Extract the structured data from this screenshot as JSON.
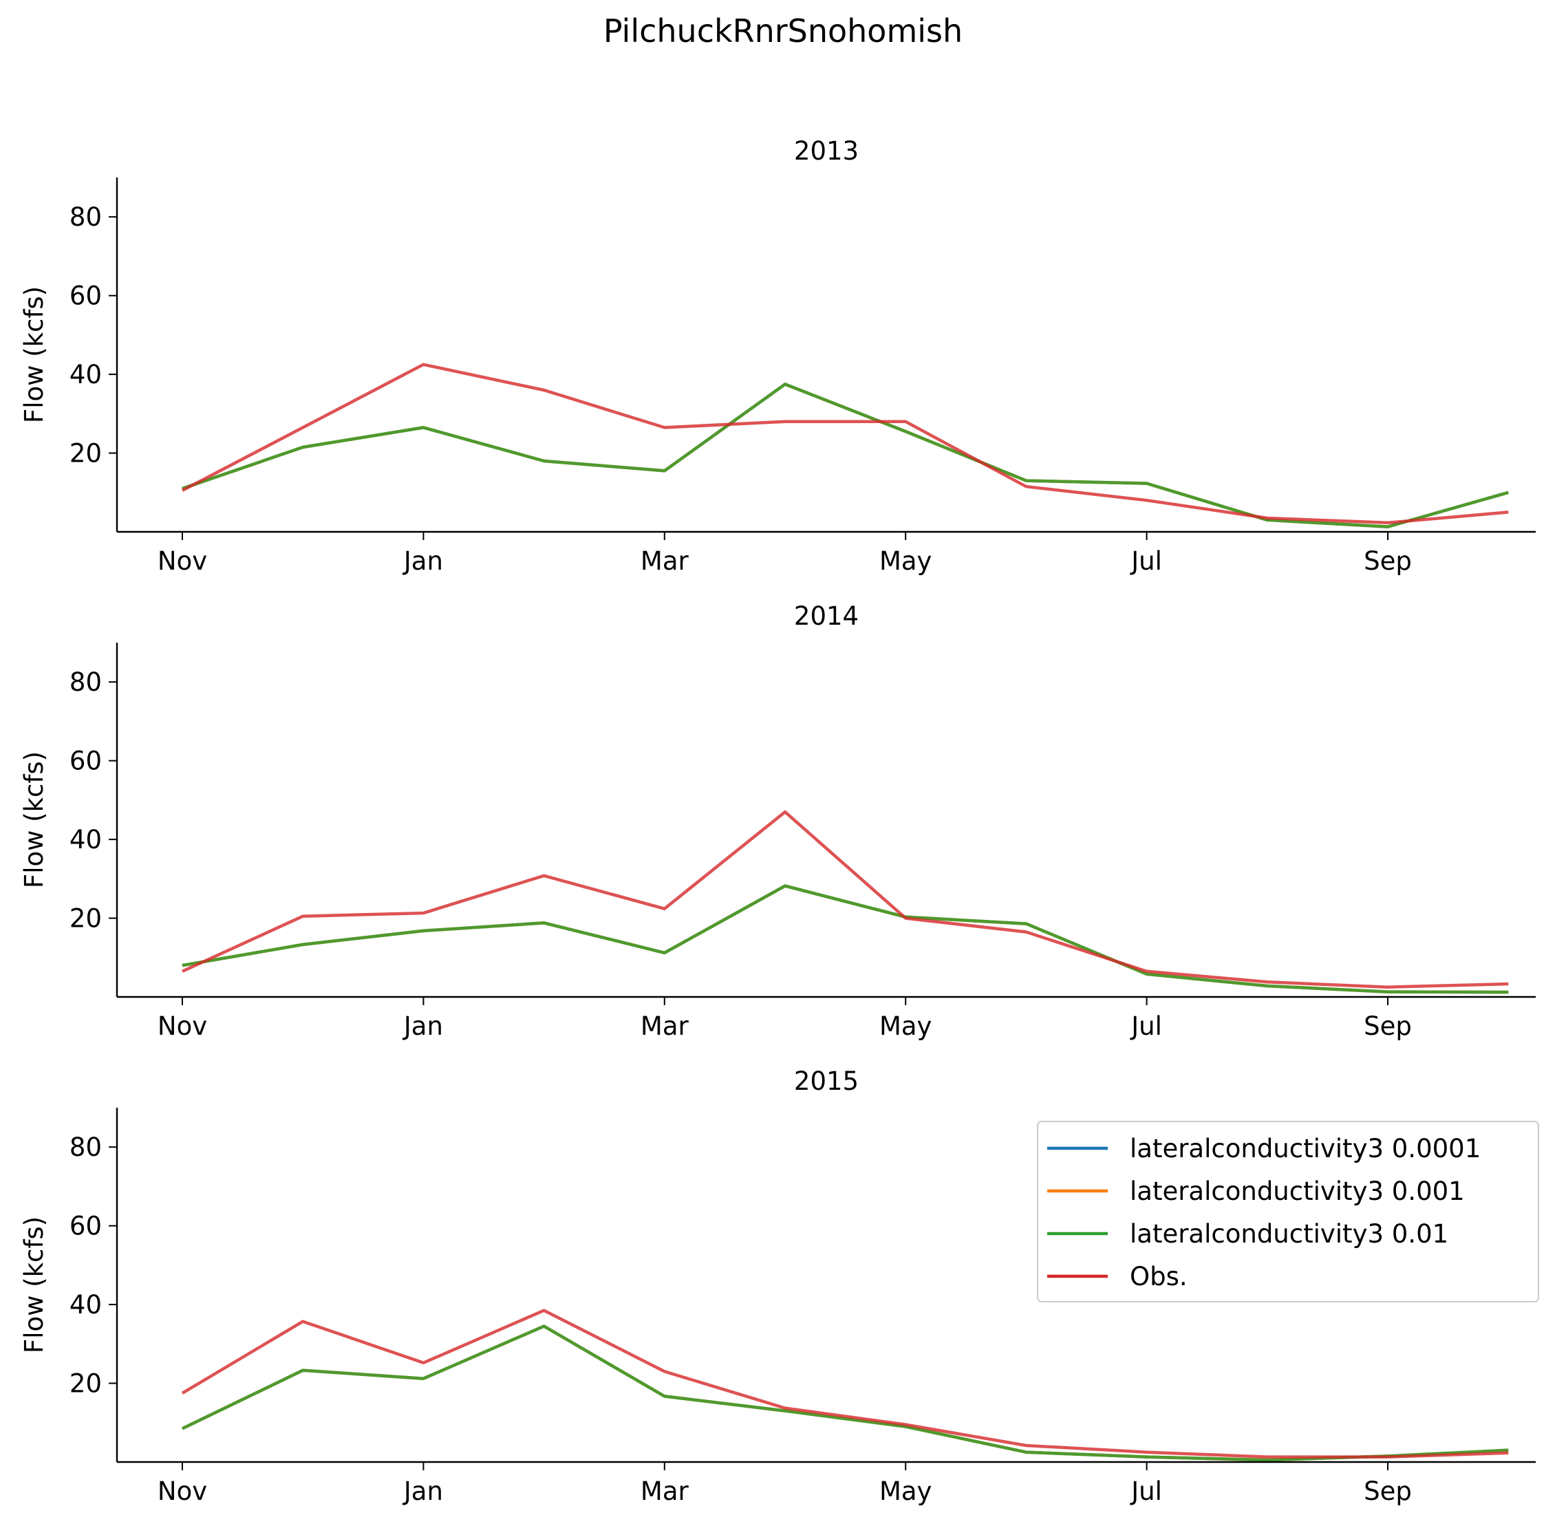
{
  "figure": {
    "title": "PilchuckRnrSnohomish"
  },
  "colors": {
    "lateralconductivity3 0.0001": "#1f77b4",
    "lateralconductivity3 0.001": "#ff7f0e",
    "lateralconductivity3 0.01": "#2ca02c",
    "Obs.": "#d62728"
  },
  "chart_data": [
    {
      "type": "line",
      "title": "2013",
      "xlabel": "",
      "ylabel": "Flow (kcfs)",
      "x_tick_labels": [
        "Nov",
        "Jan",
        "Mar",
        "May",
        "Jul",
        "Sep"
      ],
      "y_ticks": [
        20,
        40,
        60,
        80
      ],
      "ylim": [
        0,
        90
      ],
      "x": [
        "Nov",
        "Dec",
        "Jan",
        "Feb",
        "Mar",
        "Apr",
        "May",
        "Jun",
        "Jul",
        "Aug",
        "Sep",
        "Oct"
      ],
      "series": [
        {
          "name": "lateralconductivity3 0.0001",
          "values": [
            11.0,
            21.5,
            26.5,
            18.0,
            15.5,
            37.5,
            25.5,
            13.0,
            12.3,
            3.0,
            1.3,
            10.0
          ]
        },
        {
          "name": "lateralconductivity3 0.001",
          "values": [
            11.0,
            21.5,
            26.5,
            18.0,
            15.5,
            37.5,
            25.5,
            13.0,
            12.3,
            3.0,
            1.3,
            10.0
          ]
        },
        {
          "name": "lateralconductivity3 0.01",
          "values": [
            11.0,
            21.5,
            26.5,
            18.0,
            15.5,
            37.5,
            25.5,
            13.0,
            12.3,
            3.0,
            1.3,
            10.0
          ]
        },
        {
          "name": "Obs.",
          "values": [
            10.5,
            26.5,
            42.5,
            36.0,
            26.5,
            28.0,
            28.0,
            11.5,
            8.0,
            3.5,
            2.3,
            5.0
          ]
        }
      ]
    },
    {
      "type": "line",
      "title": "2014",
      "xlabel": "",
      "ylabel": "Flow (kcfs)",
      "x_tick_labels": [
        "Nov",
        "Jan",
        "Mar",
        "May",
        "Jul",
        "Sep"
      ],
      "y_ticks": [
        20,
        40,
        60,
        80
      ],
      "ylim": [
        0,
        90
      ],
      "x": [
        "Nov",
        "Dec",
        "Jan",
        "Feb",
        "Mar",
        "Apr",
        "May",
        "Jun",
        "Jul",
        "Aug",
        "Sep",
        "Oct"
      ],
      "series": [
        {
          "name": "lateralconductivity3 0.0001",
          "values": [
            8.0,
            13.3,
            16.8,
            18.8,
            11.2,
            28.2,
            20.3,
            18.6,
            5.8,
            2.8,
            1.3,
            1.2
          ]
        },
        {
          "name": "lateralconductivity3 0.001",
          "values": [
            8.0,
            13.3,
            16.8,
            18.8,
            11.2,
            28.2,
            20.3,
            18.6,
            5.8,
            2.8,
            1.3,
            1.2
          ]
        },
        {
          "name": "lateralconductivity3 0.01",
          "values": [
            8.0,
            13.3,
            16.8,
            18.8,
            11.2,
            28.2,
            20.3,
            18.6,
            5.8,
            2.8,
            1.3,
            1.2
          ]
        },
        {
          "name": "Obs.",
          "values": [
            6.5,
            20.5,
            21.3,
            30.8,
            22.4,
            47.0,
            20.0,
            16.5,
            6.5,
            3.8,
            2.5,
            3.3
          ]
        }
      ]
    },
    {
      "type": "line",
      "title": "2015",
      "xlabel": "",
      "ylabel": "Flow (kcfs)",
      "x_tick_labels": [
        "Nov",
        "Jan",
        "Mar",
        "May",
        "Jul",
        "Sep"
      ],
      "y_ticks": [
        20,
        40,
        60,
        80
      ],
      "ylim": [
        0,
        90
      ],
      "x": [
        "Nov",
        "Dec",
        "Jan",
        "Feb",
        "Mar",
        "Apr",
        "May",
        "Jun",
        "Jul",
        "Aug",
        "Sep",
        "Oct"
      ],
      "series": [
        {
          "name": "lateralconductivity3 0.0001",
          "values": [
            8.5,
            23.3,
            21.2,
            34.5,
            16.7,
            13.0,
            9.0,
            2.5,
            1.3,
            0.5,
            1.5,
            3.0
          ]
        },
        {
          "name": "lateralconductivity3 0.001",
          "values": [
            8.5,
            23.3,
            21.2,
            34.5,
            16.7,
            13.0,
            9.0,
            2.5,
            1.3,
            0.5,
            1.5,
            3.0
          ]
        },
        {
          "name": "lateralconductivity3 0.01",
          "values": [
            8.5,
            23.3,
            21.2,
            34.5,
            16.7,
            13.0,
            9.0,
            2.5,
            1.3,
            0.5,
            1.5,
            3.0
          ]
        },
        {
          "name": "Obs.",
          "values": [
            17.5,
            35.7,
            25.2,
            38.5,
            23.0,
            13.7,
            9.5,
            4.2,
            2.5,
            1.3,
            1.3,
            2.3
          ]
        }
      ],
      "legend": {
        "placement": "upper right",
        "entries": [
          "lateralconductivity3 0.0001",
          "lateralconductivity3 0.001",
          "lateralconductivity3 0.01",
          "Obs."
        ]
      }
    }
  ]
}
